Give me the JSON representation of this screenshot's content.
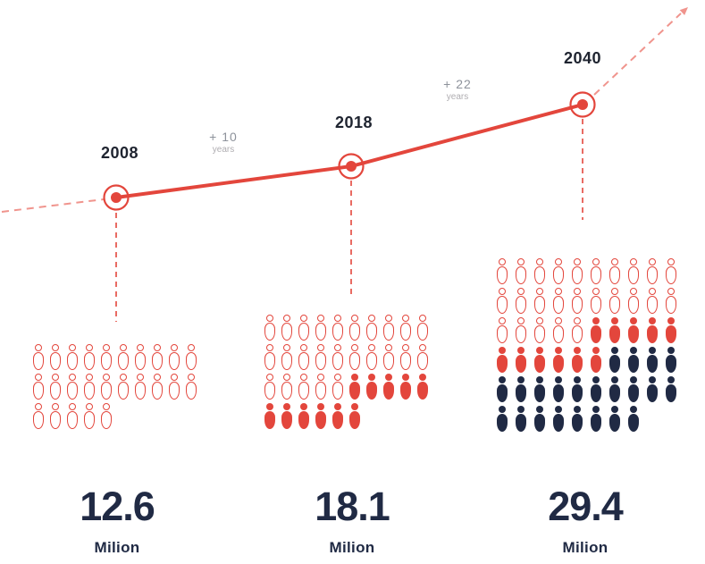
{
  "chart_data": {
    "type": "pictogram-timeline",
    "title": "",
    "x": [
      "2008",
      "2018",
      "2040"
    ],
    "values_million": [
      12.6,
      18.1,
      29.4
    ],
    "points": [
      {
        "year": "2008",
        "value": 12.6,
        "value_label": "12.6",
        "unit_label": "Milion",
        "icon_count": 25,
        "icon_rows": [
          "oooooooooo",
          "oooooooooo",
          "ooooo"
        ]
      },
      {
        "year": "2018",
        "value": 18.1,
        "value_label": "18.1",
        "unit_label": "Milion",
        "icon_count": 36,
        "icon_rows": [
          "oooooooooo",
          "oooooooooo",
          "ooooorrrrr",
          "rrrrrr"
        ]
      },
      {
        "year": "2040",
        "value": 29.4,
        "value_label": "29.4",
        "unit_label": "Milion",
        "icon_count": 58,
        "icon_rows": [
          "oooooooooo",
          "oooooooooo",
          "ooooorrrrr",
          "rrrrrrnnnn",
          "nnnnnnnnnn",
          "nnnnnnnn"
        ]
      }
    ],
    "intervals": [
      {
        "label": "+ 10",
        "sublabel": "years"
      },
      {
        "label": "+ 22",
        "sublabel": "years"
      }
    ],
    "icon_legend": {
      "o": "person-outline-red",
      "r": "person-filled-red",
      "n": "person-filled-navy"
    },
    "layout": {
      "trend_direction": "rising",
      "projection_arrow": "top-right",
      "grid": false
    },
    "colors": {
      "red": "#E3463C",
      "red_light": "#F0948D",
      "navy": "#202A44",
      "year_label": "#1F2430",
      "gray_label": "#8D929B",
      "gray_sublabel": "#AFADB1"
    }
  }
}
